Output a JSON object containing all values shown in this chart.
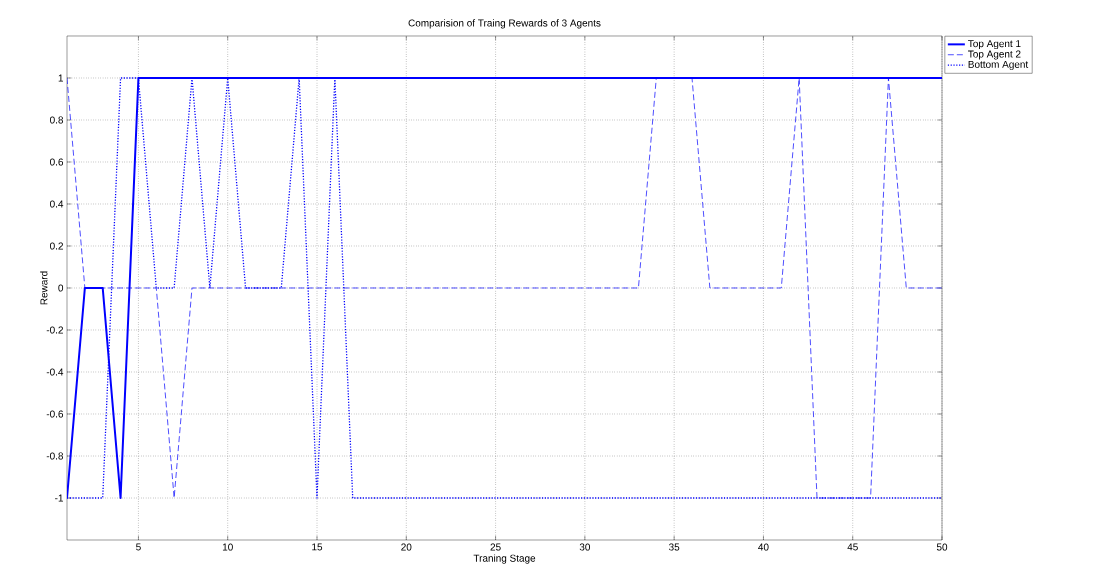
{
  "chart_data": {
    "type": "line",
    "title": "Comparision of Traing Rewards of 3 Agents",
    "xlabel": "Traning Stage",
    "ylabel": "Reward",
    "x": [
      1,
      2,
      3,
      4,
      5,
      6,
      7,
      8,
      9,
      10,
      11,
      12,
      13,
      14,
      15,
      16,
      17,
      18,
      19,
      20,
      21,
      22,
      23,
      24,
      25,
      26,
      27,
      28,
      29,
      30,
      31,
      32,
      33,
      34,
      35,
      36,
      37,
      38,
      39,
      40,
      41,
      42,
      43,
      44,
      45,
      46,
      47,
      48,
      49,
      50
    ],
    "series": [
      {
        "name": "Top Agent 1",
        "color": "#0000ff",
        "line_style": "solid",
        "values": [
          -1,
          0,
          0,
          -1,
          1,
          1,
          1,
          1,
          1,
          1,
          1,
          1,
          1,
          1,
          1,
          1,
          1,
          1,
          1,
          1,
          1,
          1,
          1,
          1,
          1,
          1,
          1,
          1,
          1,
          1,
          1,
          1,
          1,
          1,
          1,
          1,
          1,
          1,
          1,
          1,
          1,
          1,
          1,
          1,
          1,
          1,
          1,
          1,
          1,
          1
        ]
      },
      {
        "name": "Top Agent 2",
        "color": "#0000ff",
        "line_style": "dashed",
        "values": [
          1,
          0,
          0,
          0,
          0,
          0,
          -1,
          0,
          0,
          0,
          0,
          0,
          0,
          0,
          0,
          0,
          0,
          0,
          0,
          0,
          0,
          0,
          0,
          0,
          0,
          0,
          0,
          0,
          0,
          0,
          0,
          0,
          0,
          1,
          1,
          1,
          0,
          0,
          0,
          0,
          0,
          1,
          -1,
          -1,
          -1,
          -1,
          1,
          0,
          0,
          0
        ]
      },
      {
        "name": "Bottom Agent",
        "color": "#0000ff",
        "line_style": "dotted",
        "values": [
          -1,
          -1,
          -1,
          1,
          1,
          0,
          0,
          1,
          0,
          1,
          0,
          0,
          0,
          1,
          -1,
          1,
          -1,
          -1,
          -1,
          -1,
          -1,
          -1,
          -1,
          -1,
          -1,
          -1,
          -1,
          -1,
          -1,
          -1,
          -1,
          -1,
          -1,
          -1,
          -1,
          -1,
          -1,
          -1,
          -1,
          -1,
          -1,
          -1,
          -1,
          -1,
          -1,
          -1,
          -1,
          -1,
          -1,
          -1
        ]
      }
    ],
    "xlim": [
      1,
      50
    ],
    "ylim": [
      -1.2,
      1.2
    ],
    "xticks": [
      5,
      10,
      15,
      20,
      25,
      30,
      35,
      40,
      45,
      50
    ],
    "yticks": [
      -1,
      -0.8,
      -0.6,
      -0.4,
      -0.2,
      0,
      0.2,
      0.4,
      0.6,
      0.8,
      1
    ],
    "grid": true,
    "legend": "top right"
  }
}
